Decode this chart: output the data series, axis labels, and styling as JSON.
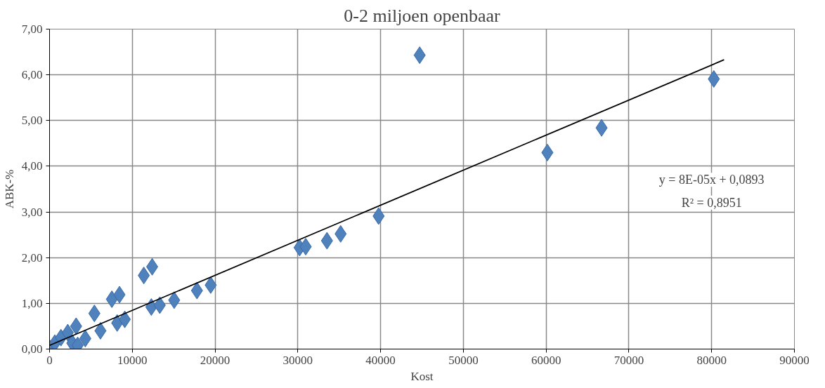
{
  "chart_data": {
    "type": "scatter",
    "title": "0-2 miljoen openbaar",
    "xlabel": "Kost",
    "ylabel": "ABK-%",
    "xlim": [
      0,
      90000
    ],
    "xticks": [
      0,
      10000,
      20000,
      30000,
      40000,
      50000,
      60000,
      70000,
      80000,
      90000
    ],
    "ylim": [
      0,
      7
    ],
    "yticks": [
      {
        "value": 0,
        "label": "0,00"
      },
      {
        "value": 1,
        "label": "1,00"
      },
      {
        "value": 2,
        "label": "2,00"
      },
      {
        "value": 3,
        "label": "3,00"
      },
      {
        "value": 4,
        "label": "4,00"
      },
      {
        "value": 5,
        "label": "5,00"
      },
      {
        "value": 6,
        "label": "6,00"
      },
      {
        "value": 7,
        "label": "7,00"
      }
    ],
    "grid": true,
    "marker": "diamond",
    "series": [
      {
        "color": "#4f81bd",
        "x": [
          0,
          640,
          1380,
          2200,
          2750,
          3210,
          3400,
          4320,
          5420,
          6150,
          7530,
          8170,
          8450,
          9090,
          11390,
          12300,
          12400,
          13320,
          15060,
          17810,
          19470,
          30210,
          30950,
          33520,
          35170,
          39760,
          44720,
          60150,
          66700,
          80260
        ],
        "values": [
          0.02,
          0.13,
          0.25,
          0.36,
          0.13,
          0.5,
          0.08,
          0.23,
          0.78,
          0.4,
          1.09,
          0.57,
          1.19,
          0.65,
          1.61,
          0.92,
          1.8,
          0.96,
          1.07,
          1.28,
          1.4,
          2.22,
          2.24,
          2.37,
          2.52,
          2.91,
          6.43,
          4.3,
          4.84,
          5.91
        ]
      },
      {
        "type": "line",
        "color": "#000000",
        "marker": "none",
        "x": [
          0,
          81500
        ],
        "values": [
          0.08,
          6.33
        ]
      }
    ],
    "annotations": [
      "y = 8E-05x + 0,0893",
      "R² = 0,8951"
    ]
  }
}
